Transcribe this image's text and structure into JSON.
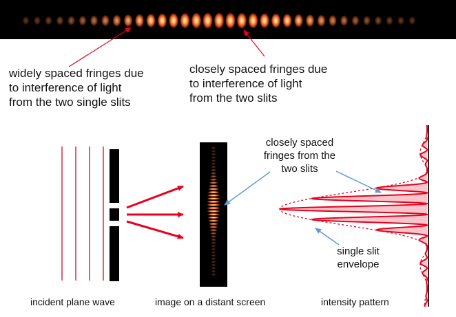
{
  "top_annotations": {
    "wide_fringes": [
      "widely spaced fringes due",
      "to interference of light",
      "from the two single slits"
    ],
    "close_fringes": [
      "closely spaced fringes due",
      "to interference of light",
      "from the two slits"
    ]
  },
  "diagram": {
    "inset_label": [
      "closely spaced",
      "fringes from the",
      "two slits"
    ],
    "envelope_label": [
      "single slit",
      "envelope"
    ],
    "captions": {
      "incident": "incident plane wave",
      "screen": "image on a distant screen",
      "intensity": "intensity pattern"
    }
  },
  "colors": {
    "wave_lines": "#e8001c",
    "arrows": "#e8001c",
    "pointer_arrows": "#5b9bd5",
    "intensity_fill": "#f7c6cc",
    "fringe_glow": "#ffb060"
  }
}
